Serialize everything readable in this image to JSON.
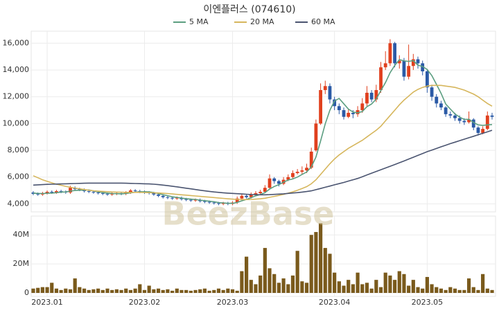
{
  "chart_data": [
    {
      "type": "candlestick",
      "title": "이엔플러스 (074610)",
      "watermark": "BeezBase",
      "up_color": "#e0401e",
      "down_color": "#2b5aa6",
      "grid": true,
      "ylim": [
        3400,
        16900
      ],
      "yticks": [
        {
          "value": 4000,
          "label": "4,000"
        },
        {
          "value": 6000,
          "label": "6,000"
        },
        {
          "value": 8000,
          "label": "8,000"
        },
        {
          "value": 10000,
          "label": "10,000"
        },
        {
          "value": 12000,
          "label": "12,000"
        },
        {
          "value": 14000,
          "label": "14,000"
        },
        {
          "value": 16000,
          "label": "16,000"
        }
      ],
      "open": [
        4850,
        4750,
        4700,
        4800,
        4900,
        4850,
        4950,
        4900,
        4850,
        5200,
        5100,
        5050,
        4950,
        4900,
        4850,
        4800,
        4750,
        4700,
        4750,
        4800,
        4750,
        4850,
        5000,
        4950,
        4900,
        4850,
        4800,
        4700,
        4600,
        4500,
        4450,
        4400,
        4450,
        4350,
        4300,
        4250,
        4300,
        4200,
        4150,
        4100,
        4050,
        4000,
        4050,
        4000,
        4100,
        4400,
        4600,
        4500,
        4700,
        4800,
        4900,
        5200,
        5900,
        5700,
        5500,
        5800,
        6000,
        6300,
        6400,
        6500,
        6700,
        8000,
        10000,
        12500,
        12800,
        11800,
        11300,
        11000,
        10500,
        10800,
        10700,
        11000,
        11500,
        12300,
        11800,
        12500,
        14200,
        14500,
        16000,
        14500,
        14700,
        13500,
        14300,
        14800,
        14500,
        13900,
        12700,
        12000,
        11500,
        11200,
        10700,
        10600,
        10400,
        10200,
        10100,
        10300,
        9700,
        9300,
        9600,
        10600
      ],
      "high": [
        4950,
        4850,
        4900,
        5000,
        5000,
        5050,
        5050,
        5000,
        5350,
        5300,
        5200,
        5150,
        5050,
        5000,
        4950,
        4900,
        4850,
        4850,
        4900,
        4900,
        4950,
        5100,
        5100,
        5050,
        5000,
        4950,
        4900,
        4800,
        4700,
        4600,
        4550,
        4550,
        4550,
        4450,
        4400,
        4400,
        4400,
        4300,
        4250,
        4200,
        4150,
        4150,
        4150,
        4200,
        4550,
        4750,
        4700,
        4850,
        4950,
        5050,
        5400,
        6200,
        6000,
        5800,
        6000,
        6200,
        6500,
        6600,
        6800,
        7000,
        8200,
        10300,
        13000,
        13200,
        13000,
        12000,
        11500,
        11200,
        11100,
        11000,
        11300,
        11900,
        12800,
        12500,
        12900,
        14600,
        15400,
        16300,
        16100,
        15100,
        14900,
        15900,
        15200,
        15000,
        14700,
        14000,
        12900,
        12200,
        11700,
        11300,
        10900,
        10800,
        10600,
        10400,
        10900,
        10400,
        9800,
        9800,
        10900,
        10800
      ],
      "low": [
        4650,
        4600,
        4600,
        4700,
        4750,
        4750,
        4800,
        4750,
        4750,
        5000,
        4950,
        4850,
        4800,
        4750,
        4700,
        4650,
        4600,
        4600,
        4650,
        4650,
        4650,
        4750,
        4850,
        4800,
        4750,
        4700,
        4600,
        4500,
        4400,
        4350,
        4300,
        4300,
        4250,
        4200,
        4150,
        4150,
        4100,
        4050,
        4000,
        3950,
        3900,
        3900,
        3900,
        3900,
        4000,
        4300,
        4400,
        4400,
        4600,
        4700,
        4800,
        5100,
        5500,
        5300,
        5400,
        5700,
        5900,
        6200,
        6200,
        6300,
        6600,
        7900,
        9900,
        12200,
        11500,
        11000,
        10700,
        10300,
        10400,
        10400,
        10500,
        10800,
        11300,
        11600,
        11600,
        12300,
        14000,
        14300,
        14200,
        14100,
        13200,
        13300,
        14000,
        14100,
        13600,
        12300,
        11700,
        11200,
        11000,
        10500,
        10400,
        10200,
        10000,
        9900,
        10000,
        9500,
        9100,
        9200,
        9500,
        10300
      ],
      "close": [
        4750,
        4700,
        4800,
        4900,
        4850,
        4950,
        4900,
        4850,
        5200,
        5100,
        5050,
        4950,
        4900,
        4850,
        4800,
        4750,
        4700,
        4750,
        4800,
        4750,
        4850,
        5000,
        4950,
        4900,
        4850,
        4800,
        4700,
        4600,
        4500,
        4450,
        4400,
        4450,
        4350,
        4300,
        4250,
        4300,
        4200,
        4150,
        4100,
        4050,
        4000,
        4050,
        4000,
        4100,
        4400,
        4600,
        4500,
        4700,
        4800,
        4900,
        5200,
        5900,
        5700,
        5500,
        5800,
        6000,
        6300,
        6400,
        6500,
        6700,
        7900,
        10000,
        12500,
        12800,
        11800,
        11300,
        11000,
        10500,
        10800,
        10700,
        11000,
        11500,
        12300,
        11800,
        12500,
        14200,
        14500,
        16000,
        14500,
        14700,
        13500,
        14300,
        14800,
        14500,
        13900,
        12700,
        12000,
        11500,
        11200,
        10700,
        10600,
        10400,
        10200,
        10100,
        10300,
        9700,
        9300,
        9600,
        10600,
        10500
      ],
      "series": [
        {
          "name": "5 MA",
          "color": "#5b9e80",
          "values": [
            4800,
            4780,
            4770,
            4790,
            4800,
            4840,
            4880,
            4890,
            4950,
            5000,
            5020,
            5030,
            5040,
            4970,
            4900,
            4850,
            4800,
            4770,
            4760,
            4750,
            4770,
            4830,
            4870,
            4900,
            4910,
            4900,
            4850,
            4770,
            4690,
            4610,
            4530,
            4480,
            4430,
            4390,
            4350,
            4330,
            4280,
            4240,
            4200,
            4160,
            4100,
            4070,
            4040,
            4040,
            4110,
            4230,
            4330,
            4460,
            4600,
            4700,
            4840,
            5100,
            5300,
            5440,
            5620,
            5780,
            5860,
            6000,
            6200,
            6380,
            6760,
            7500,
            8700,
            9980,
            11000,
            11680,
            11880,
            11480,
            11080,
            10860,
            10800,
            10900,
            11260,
            11460,
            11820,
            12460,
            13060,
            13800,
            14340,
            14780,
            14680,
            14640,
            14700,
            14360,
            14260,
            14040,
            13580,
            12920,
            12260,
            11460,
            11080,
            10720,
            10480,
            10300,
            10320,
            10080,
            9900,
            9860,
            9900,
            9920
          ]
        },
        {
          "name": "20 MA",
          "color": "#d6b65c",
          "values": [
            6100,
            5950,
            5800,
            5680,
            5570,
            5470,
            5390,
            5310,
            5240,
            5180,
            5120,
            5070,
            5020,
            4980,
            4950,
            4930,
            4910,
            4890,
            4880,
            4870,
            4860,
            4860,
            4860,
            4860,
            4850,
            4840,
            4830,
            4810,
            4790,
            4770,
            4740,
            4710,
            4680,
            4650,
            4620,
            4590,
            4560,
            4530,
            4500,
            4470,
            4440,
            4410,
            4380,
            4350,
            4330,
            4320,
            4320,
            4330,
            4350,
            4380,
            4420,
            4490,
            4560,
            4630,
            4710,
            4800,
            4900,
            5020,
            5150,
            5290,
            5500,
            5800,
            6200,
            6600,
            7000,
            7350,
            7650,
            7900,
            8150,
            8350,
            8550,
            8750,
            9000,
            9250,
            9500,
            9800,
            10200,
            10600,
            11000,
            11400,
            11750,
            12050,
            12350,
            12550,
            12700,
            12800,
            12850,
            12850,
            12850,
            12800,
            12750,
            12700,
            12600,
            12500,
            12350,
            12200,
            12000,
            11750,
            11500,
            11300
          ]
        },
        {
          "name": "60 MA",
          "color": "#4a5470",
          "values": [
            5400,
            5420,
            5440,
            5460,
            5470,
            5480,
            5490,
            5500,
            5510,
            5520,
            5530,
            5540,
            5550,
            5550,
            5550,
            5550,
            5550,
            5550,
            5550,
            5550,
            5540,
            5530,
            5520,
            5510,
            5500,
            5490,
            5470,
            5440,
            5400,
            5360,
            5320,
            5270,
            5220,
            5170,
            5120,
            5070,
            5020,
            4970,
            4930,
            4890,
            4860,
            4830,
            4800,
            4780,
            4760,
            4740,
            4720,
            4700,
            4690,
            4680,
            4680,
            4690,
            4710,
            4730,
            4750,
            4780,
            4810,
            4840,
            4880,
            4920,
            4970,
            5060,
            5150,
            5240,
            5330,
            5420,
            5510,
            5600,
            5700,
            5800,
            5900,
            6030,
            6160,
            6290,
            6420,
            6550,
            6680,
            6810,
            6940,
            7070,
            7200,
            7340,
            7480,
            7620,
            7760,
            7900,
            8020,
            8140,
            8260,
            8380,
            8500,
            8610,
            8720,
            8830,
            8940,
            9050,
            9160,
            9270,
            9380,
            9500
          ]
        }
      ]
    },
    {
      "type": "bar",
      "color": "#7a5a1c",
      "grid": true,
      "ylim": [
        0,
        53000000
      ],
      "yticks": [
        0,
        {
          "value": 20000000,
          "label": "20M"
        },
        {
          "value": 40000000,
          "label": "40M"
        }
      ],
      "categories": [
        null,
        null,
        null,
        "2023.01",
        null,
        null,
        null,
        null,
        null,
        null,
        null,
        null,
        null,
        null,
        null,
        null,
        null,
        null,
        null,
        null,
        null,
        null,
        null,
        null,
        "2023.02",
        null,
        null,
        null,
        null,
        null,
        null,
        null,
        null,
        null,
        null,
        null,
        null,
        null,
        null,
        null,
        null,
        null,
        null,
        "2023.03",
        null,
        null,
        null,
        null,
        null,
        null,
        null,
        null,
        null,
        null,
        null,
        null,
        null,
        null,
        null,
        null,
        null,
        null,
        null,
        null,
        null,
        "2023.04",
        null,
        null,
        null,
        null,
        null,
        null,
        null,
        null,
        null,
        null,
        null,
        null,
        null,
        null,
        null,
        null,
        null,
        null,
        null,
        "2023.05",
        null,
        null,
        null,
        null,
        null,
        null,
        null,
        null,
        null,
        null,
        null,
        null,
        null,
        null
      ],
      "values": [
        3000000,
        3500000,
        4000000,
        4000000,
        7000000,
        3000000,
        2000000,
        3000000,
        2500000,
        10000000,
        4000000,
        3000000,
        2000000,
        2500000,
        3000000,
        2000000,
        3000000,
        2000000,
        2500000,
        2000000,
        3000000,
        2000000,
        3000000,
        6000000,
        2000000,
        5000000,
        2500000,
        3000000,
        2000000,
        2500000,
        1500000,
        3000000,
        2000000,
        2000000,
        1500000,
        2000000,
        2500000,
        3000000,
        1500000,
        2000000,
        3000000,
        2000000,
        3000000,
        2500000,
        1500000,
        15000000,
        25000000,
        9000000,
        6000000,
        12000000,
        31000000,
        17000000,
        13000000,
        7000000,
        10000000,
        6000000,
        12000000,
        29000000,
        8000000,
        7000000,
        40000000,
        42000000,
        48000000,
        31000000,
        27000000,
        14000000,
        8000000,
        5000000,
        9000000,
        6000000,
        14000000,
        6000000,
        7000000,
        3000000,
        9000000,
        4000000,
        14000000,
        12000000,
        9000000,
        15000000,
        13000000,
        5000000,
        9000000,
        4000000,
        3000000,
        11000000,
        6000000,
        4000000,
        3000000,
        2000000,
        4000000,
        3000000,
        2000000,
        2000000,
        10000000,
        4000000,
        2000000,
        13000000,
        3000000,
        2000000
      ]
    }
  ]
}
